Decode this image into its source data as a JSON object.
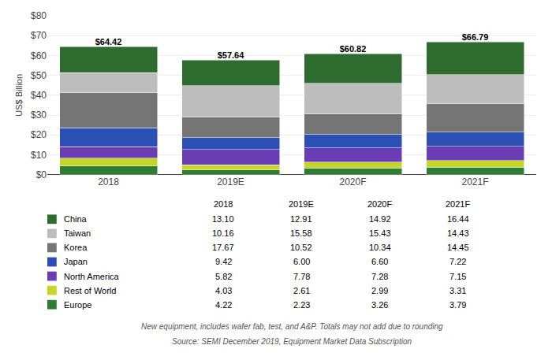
{
  "chart_data": {
    "type": "bar",
    "stacked": true,
    "categories": [
      "2018",
      "2019E",
      "2020F",
      "2021F"
    ],
    "series": [
      {
        "name": "Europe",
        "color": "#2e7d32",
        "values": [
          4.22,
          2.23,
          3.26,
          3.79
        ],
        "value_labels": [
          "4.22",
          "2.23",
          "3.26",
          "3.79"
        ]
      },
      {
        "name": "Rest of World",
        "color": "#c6d627",
        "values": [
          4.03,
          2.61,
          2.99,
          3.31
        ],
        "value_labels": [
          "4.03",
          "2.61",
          "2.99",
          "3.31"
        ]
      },
      {
        "name": "North America",
        "color": "#6a3db5",
        "values": [
          5.82,
          7.78,
          7.28,
          7.15
        ],
        "value_labels": [
          "5.82",
          "7.78",
          "7.28",
          "7.15"
        ]
      },
      {
        "name": "Japan",
        "color": "#2b4fb5",
        "values": [
          9.42,
          6.0,
          6.6,
          7.22
        ],
        "value_labels": [
          "9.42",
          "6.00",
          "6.60",
          "7.22"
        ]
      },
      {
        "name": "Korea",
        "color": "#757575",
        "values": [
          17.67,
          10.52,
          10.34,
          14.45
        ],
        "value_labels": [
          "17.67",
          "10.52",
          "10.34",
          "14.45"
        ]
      },
      {
        "name": "Taiwan",
        "color": "#bdbdbd",
        "values": [
          10.16,
          15.58,
          15.43,
          14.43
        ],
        "value_labels": [
          "10.16",
          "15.58",
          "15.43",
          "14.43"
        ]
      },
      {
        "name": "China",
        "color": "#2e6b2e",
        "values": [
          13.1,
          12.91,
          14.92,
          16.44
        ],
        "value_labels": [
          "13.10",
          "12.91",
          "14.92",
          "16.44"
        ]
      }
    ],
    "totals": [
      64.42,
      57.64,
      60.82,
      66.79
    ],
    "total_labels": [
      "$64.42",
      "$57.64",
      "$60.82",
      "$66.79"
    ],
    "ylabel": "US$ Billion",
    "ylim": [
      0,
      80
    ],
    "yticks": [
      {
        "value": 0,
        "label": "$0"
      },
      {
        "value": 10,
        "label": "$10"
      },
      {
        "value": 20,
        "label": "$20"
      },
      {
        "value": 30,
        "label": "$30"
      },
      {
        "value": 40,
        "label": "$40"
      },
      {
        "value": 50,
        "label": "$50"
      },
      {
        "value": 60,
        "label": "$60"
      },
      {
        "value": 70,
        "label": "$70"
      },
      {
        "value": 80,
        "label": "$80"
      }
    ],
    "grid": true,
    "annotations": [
      "New equipment, includes wafer fab, test, and A&P. Totals may not add due to rounding",
      "Source: SEMI December 2019, Equipment Market Data Subscription"
    ]
  }
}
